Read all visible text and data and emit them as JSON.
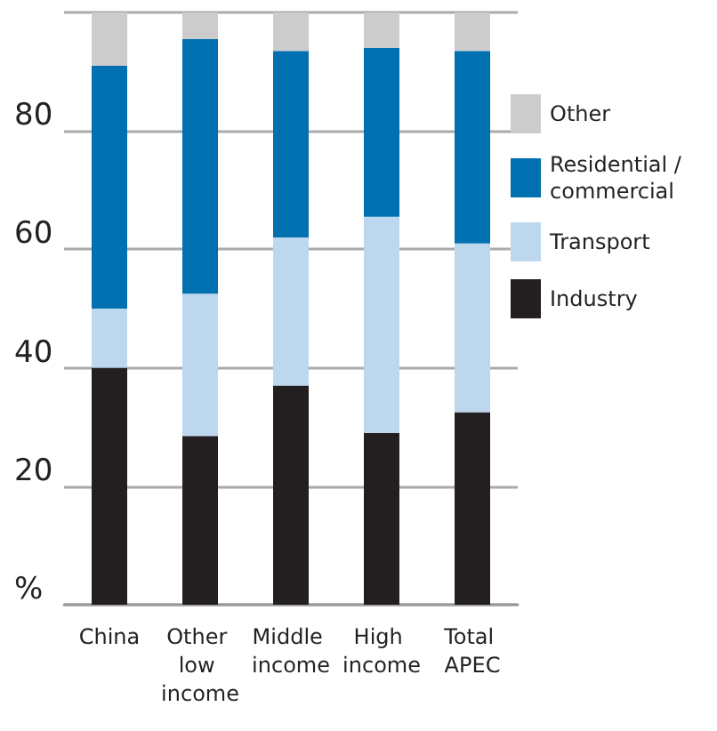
{
  "chart_data": {
    "type": "bar",
    "stacked": true,
    "categories": [
      "China",
      "Other low income",
      "Middle income",
      "High income",
      "Total APEC"
    ],
    "series": [
      {
        "name": "Industry",
        "color": "#231f20",
        "values": [
          40,
          28.5,
          37,
          29,
          32.5
        ]
      },
      {
        "name": "Transport",
        "color": "#bdd7ee",
        "values": [
          10,
          24,
          25,
          36.5,
          28.5
        ]
      },
      {
        "name": "Residential /commercial",
        "color": "#0070b0",
        "values": [
          41,
          43,
          31.5,
          28.5,
          32.5
        ]
      },
      {
        "name": "Other",
        "color": "#cccccc",
        "values": [
          9,
          4.5,
          6.5,
          6,
          6.5
        ]
      }
    ],
    "ylim": [
      0,
      100
    ],
    "yticks": [
      {
        "value": 0,
        "label": "%"
      },
      20,
      40,
      60,
      80,
      {
        "value": 100,
        "label": null
      }
    ],
    "grid": "y",
    "legend": "right"
  }
}
